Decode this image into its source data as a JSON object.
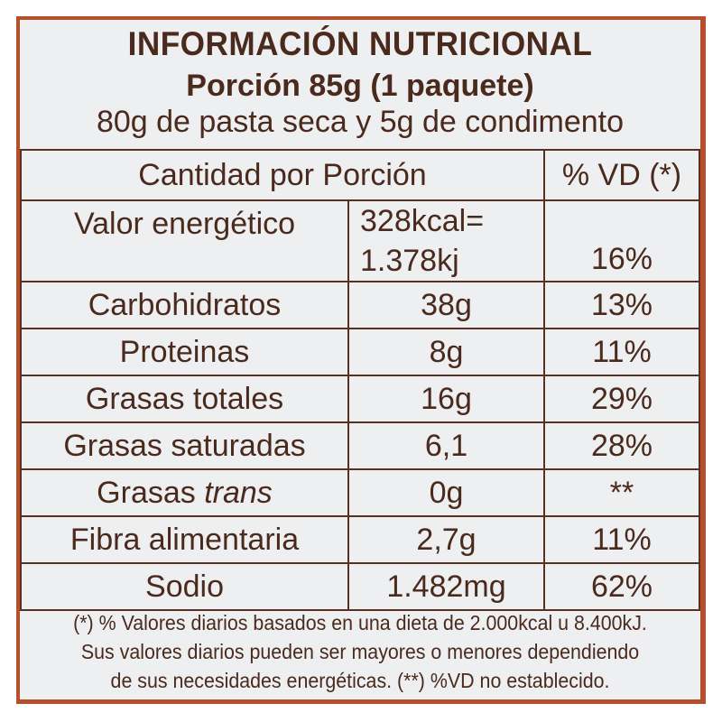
{
  "label": {
    "title": "INFORMACIÓN NUTRICIONAL",
    "serving": "Porción 85g (1 paquete)",
    "serving_detail": "80g de pasta seca y 5g de condimento",
    "header": {
      "quantity": "Cantidad por Porción",
      "dv": "% VD (*)"
    },
    "energy": {
      "name": "Valor energético",
      "value_line1": "328kcal=",
      "value_line2": "1.378kj",
      "dv": "16%"
    },
    "rows": [
      {
        "name": "Carbohidratos",
        "value": "38g",
        "dv": "13%"
      },
      {
        "name": "Proteinas",
        "value": "8g",
        "dv": "11%"
      },
      {
        "name": "Grasas totales",
        "value": "16g",
        "dv": "29%"
      },
      {
        "name": "Grasas saturadas",
        "value": "6,1",
        "dv": "28%"
      },
      {
        "name": "Grasas",
        "name_italic": "trans",
        "value": "0g",
        "dv": "**"
      },
      {
        "name": "Fibra alimentaria",
        "value": "2,7g",
        "dv": "11%"
      },
      {
        "name": "Sodio",
        "value": "1.482mg",
        "dv": "62%"
      }
    ],
    "footnote_1": "(*) % Valores diarios basados en una dieta de 2.000kcal u 8.400kJ.",
    "footnote_2": "Sus valores diarios pueden ser mayores o menores dependiendo",
    "footnote_3": "de sus necesidades energéticas. (**) %VD no establecido."
  }
}
